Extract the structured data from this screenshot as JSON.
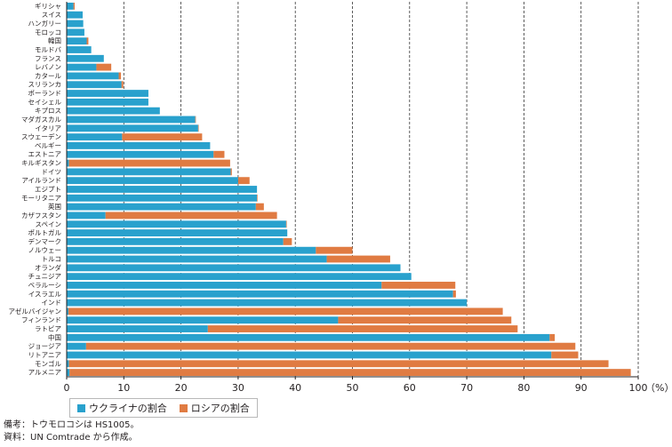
{
  "chart_data": {
    "type": "bar",
    "orientation": "horizontal",
    "stacked": true,
    "categories": [
      "ギリシャ",
      "スイス",
      "ハンガリー",
      "モロッコ",
      "韓国",
      "モルドバ",
      "フランス",
      "レバノン",
      "カタール",
      "スリランカ",
      "ポーランド",
      "セイシェル",
      "キプロス",
      "マダガスカル",
      "イタリア",
      "スウェーデン",
      "ベルギー",
      "エストニア",
      "キルギスタン",
      "ドイツ",
      "アイルランド",
      "エジプト",
      "モーリタニア",
      "英国",
      "カザフスタン",
      "スペイン",
      "ポルトガル",
      "デンマーク",
      "ノルウェー",
      "トルコ",
      "オランダ",
      "チュニジア",
      "ベラルーシ",
      "イスラエル",
      "インド",
      "アゼルバイジャン",
      "フィンランド",
      "ラトビア",
      "中国",
      "ジョージア",
      "リトアニア",
      "モンゴル",
      "アルメニア"
    ],
    "series": [
      {
        "name": "ウクライナの割合",
        "color": "#29a1cd",
        "values": [
          1.2,
          2.8,
          2.9,
          3.1,
          3.5,
          4.3,
          6.5,
          5.2,
          9.1,
          9.6,
          14.3,
          14.3,
          16.3,
          22.5,
          23.0,
          9.7,
          25.1,
          25.7,
          0.4,
          28.7,
          30.0,
          33.3,
          33.3,
          33.1,
          6.8,
          38.4,
          38.6,
          37.9,
          43.6,
          45.5,
          58.4,
          60.3,
          55.1,
          67.6,
          70.0,
          0.3,
          47.5,
          24.7,
          84.5,
          3.4,
          84.8,
          0.4,
          0.5
        ]
      },
      {
        "name": "ロシアの割合",
        "color": "#e07b42",
        "values": [
          0.2,
          0.0,
          0.0,
          0.0,
          0.3,
          0.0,
          0.0,
          2.6,
          0.4,
          0.3,
          0.0,
          0.0,
          0.0,
          0.1,
          0.1,
          14.0,
          0.0,
          1.9,
          28.2,
          0.2,
          2.0,
          0.0,
          0.1,
          1.4,
          30.0,
          0.1,
          0.0,
          1.5,
          6.4,
          11.1,
          0.0,
          0.0,
          12.9,
          0.5,
          0.0,
          76.0,
          30.3,
          54.2,
          0.9,
          85.6,
          4.7,
          94.4,
          98.2
        ]
      }
    ],
    "xticks": [
      0,
      10,
      20,
      30,
      40,
      50,
      60,
      70,
      80,
      90,
      100
    ],
    "xlim": [
      0,
      100
    ],
    "xunit": "（%）",
    "legend": "bottom-left",
    "grid": "vertical dashed"
  },
  "notes": {
    "line1": "備考：トウモロコシは HS1005。",
    "line2": "資料：UN Comtrade から作成。"
  }
}
